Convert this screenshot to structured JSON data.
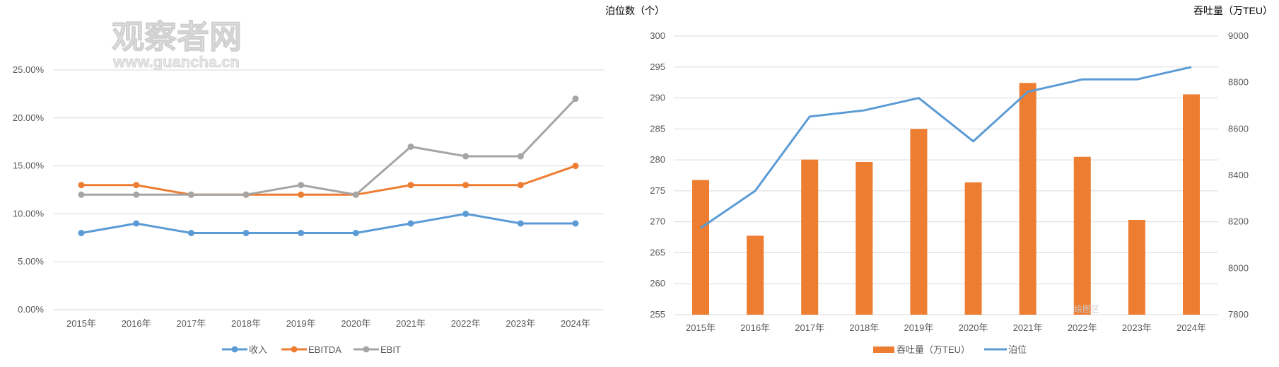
{
  "watermark": {
    "name": "观察者网",
    "url": "www.guancha.cn"
  },
  "chart_data": [
    {
      "type": "line",
      "categories": [
        "2015年",
        "2016年",
        "2017年",
        "2018年",
        "2019年",
        "2020年",
        "2021年",
        "2022年",
        "2023年",
        "2024年"
      ],
      "ylim": [
        0,
        25
      ],
      "yticks": [
        "0.00%",
        "5.00%",
        "10.00%",
        "15.00%",
        "20.00%",
        "25.00%"
      ],
      "grid": true,
      "legend_position": "bottom",
      "series": [
        {
          "name": "收入",
          "color": "#5B9BD5",
          "values": [
            8,
            9,
            8,
            8,
            8,
            8,
            9,
            10,
            9,
            9
          ]
        },
        {
          "name": "EBITDA",
          "color": "#ED7D31",
          "values": [
            13,
            13,
            12,
            12,
            12,
            12,
            13,
            13,
            13,
            15
          ]
        },
        {
          "name": "EBIT",
          "color": "#A5A5A5",
          "values": [
            12,
            12,
            12,
            12,
            13,
            12,
            17,
            16,
            16,
            22
          ]
        }
      ]
    },
    {
      "type": "bar+line",
      "categories": [
        "2015年",
        "2016年",
        "2017年",
        "2018年",
        "2019年",
        "2020年",
        "2021年",
        "2022年",
        "2023年",
        "2024年"
      ],
      "ylabel_left": "泊位数（个）",
      "ylabel_right": "吞吐量（万TEU）",
      "ylim_left": [
        255,
        300
      ],
      "ylim_right": [
        7800,
        9000
      ],
      "yticks_left": [
        "255",
        "260",
        "265",
        "270",
        "275",
        "280",
        "285",
        "290",
        "295",
        "300"
      ],
      "yticks_right": [
        "7800",
        "8000",
        "8200",
        "8400",
        "8600",
        "8800",
        "9000"
      ],
      "grid": true,
      "legend_position": "bottom",
      "plot_area_label": "绘图区",
      "series": [
        {
          "name": "吞吐量（万TEU）",
          "type": "bar",
          "axis": "right",
          "color": "#ED7D31",
          "values": [
            8380,
            8140,
            8468,
            8458,
            8600,
            8370,
            8798,
            8480,
            8208,
            8749
          ]
        },
        {
          "name": "泊位",
          "type": "line",
          "axis": "left",
          "color": "#5B9BD5",
          "values": [
            269,
            275,
            287,
            288,
            290,
            283,
            291,
            293,
            293,
            295
          ]
        }
      ]
    }
  ]
}
